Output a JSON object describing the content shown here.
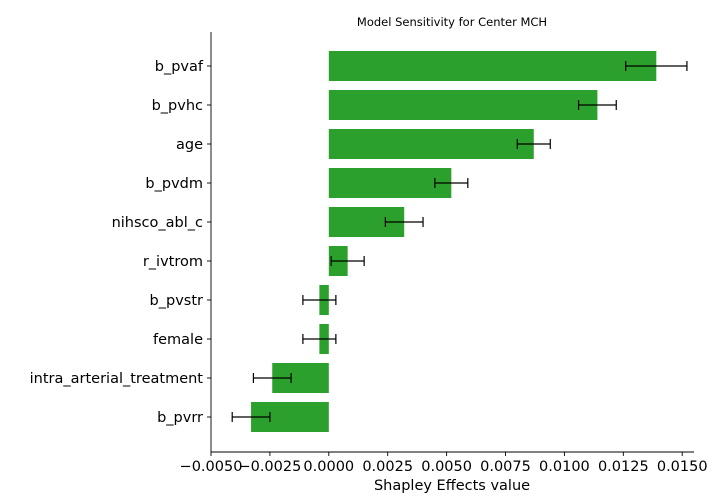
{
  "chart_data": {
    "type": "bar",
    "orientation": "horizontal",
    "title": "Model Sensitivity for Center MCH",
    "xlabel": "Shapley Effects value",
    "ylabel": "",
    "xlim": [
      -0.005,
      0.0155
    ],
    "xticks": [
      -0.005,
      -0.0025,
      0.0,
      0.0025,
      0.005,
      0.0075,
      0.01,
      0.0125,
      0.015
    ],
    "xtick_labels": [
      "−0.0050",
      "−0.0025",
      "0.0000",
      "0.0025",
      "0.0050",
      "0.0075",
      "0.0100",
      "0.0125",
      "0.0150"
    ],
    "categories": [
      "b_pvaf",
      "b_pvhc",
      "age",
      "b_pvdm",
      "nihsco_abl_c",
      "r_ivtrom",
      "b_pvstr",
      "female",
      "intra_arterial_treatment",
      "b_pvrr"
    ],
    "values": [
      0.0139,
      0.0114,
      0.0087,
      0.0052,
      0.0032,
      0.0008,
      -0.0004,
      -0.0004,
      -0.0024,
      -0.0033
    ],
    "errors": [
      0.0013,
      0.0008,
      0.0007,
      0.0007,
      0.0008,
      0.0007,
      0.0007,
      0.0007,
      0.0008,
      0.0008
    ],
    "bar_color": "#2ca02c",
    "grid": false,
    "legend": "none"
  }
}
